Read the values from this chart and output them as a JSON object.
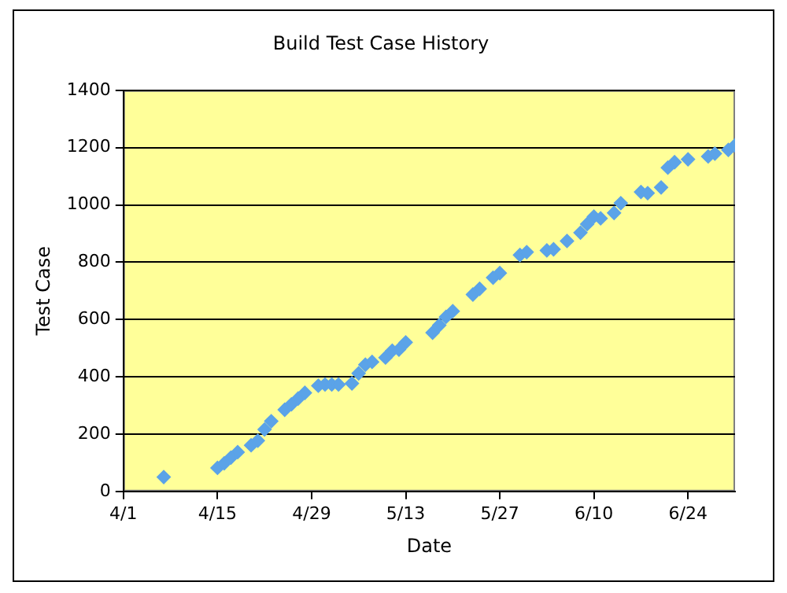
{
  "chart_data": {
    "type": "scatter",
    "title": "Build Test Case History",
    "xlabel": "Date",
    "ylabel": "Test Case",
    "x": [
      "--04-07",
      "--04-15",
      "--04-16",
      "--04-17",
      "--04-18",
      "--04-20",
      "--04-21",
      "--04-22",
      "--04-23",
      "--04-25",
      "--04-26",
      "--04-27",
      "--04-28",
      "--04-30",
      "--05-01",
      "--05-02",
      "--05-03",
      "--05-05",
      "--05-06",
      "--05-07",
      "--05-08",
      "--05-10",
      "--05-11",
      "--05-12",
      "--05-13",
      "--05-17",
      "--05-18",
      "--05-19",
      "--05-20",
      "--05-23",
      "--05-24",
      "--05-26",
      "--05-27",
      "--05-30",
      "--05-31",
      "--06-03",
      "--06-04",
      "--06-06",
      "--06-08",
      "--06-09",
      "--06-10",
      "--06-11",
      "--06-13",
      "--06-14",
      "--06-17",
      "--06-18",
      "--06-20",
      "--06-21",
      "--06-22",
      "--06-24",
      "--06-27",
      "--06-28",
      "--06-30",
      "--07-01"
    ],
    "series": [
      {
        "color": "#5ba3e8",
        "values": [
          50,
          82,
          98,
          118,
          137,
          161,
          177,
          216,
          245,
          285,
          304,
          324,
          344,
          369,
          373,
          373,
          373,
          377,
          412,
          442,
          452,
          467,
          491,
          495,
          520,
          554,
          580,
          609,
          629,
          687,
          707,
          746,
          762,
          825,
          835,
          841,
          845,
          874,
          903,
          933,
          959,
          953,
          972,
          1006,
          1045,
          1041,
          1061,
          1130,
          1149,
          1159,
          1169,
          1179,
          1192,
          1208
        ]
      }
    ],
    "xlim": [
      "--04-01",
      "--07-01"
    ],
    "xticks": [
      {
        "value": "--04-01",
        "label": "4/1"
      },
      {
        "value": "--04-15",
        "label": "4/15"
      },
      {
        "value": "--04-29",
        "label": "4/29"
      },
      {
        "value": "--05-13",
        "label": "5/13"
      },
      {
        "value": "--05-27",
        "label": "5/27"
      },
      {
        "value": "--06-10",
        "label": "6/10"
      },
      {
        "value": "--06-24",
        "label": "6/24"
      }
    ],
    "ylim": [
      0,
      1400
    ],
    "yticks": [
      0,
      200,
      400,
      600,
      800,
      1000,
      1200,
      1400
    ],
    "grid": "y",
    "legend": false,
    "marker": "diamond"
  }
}
